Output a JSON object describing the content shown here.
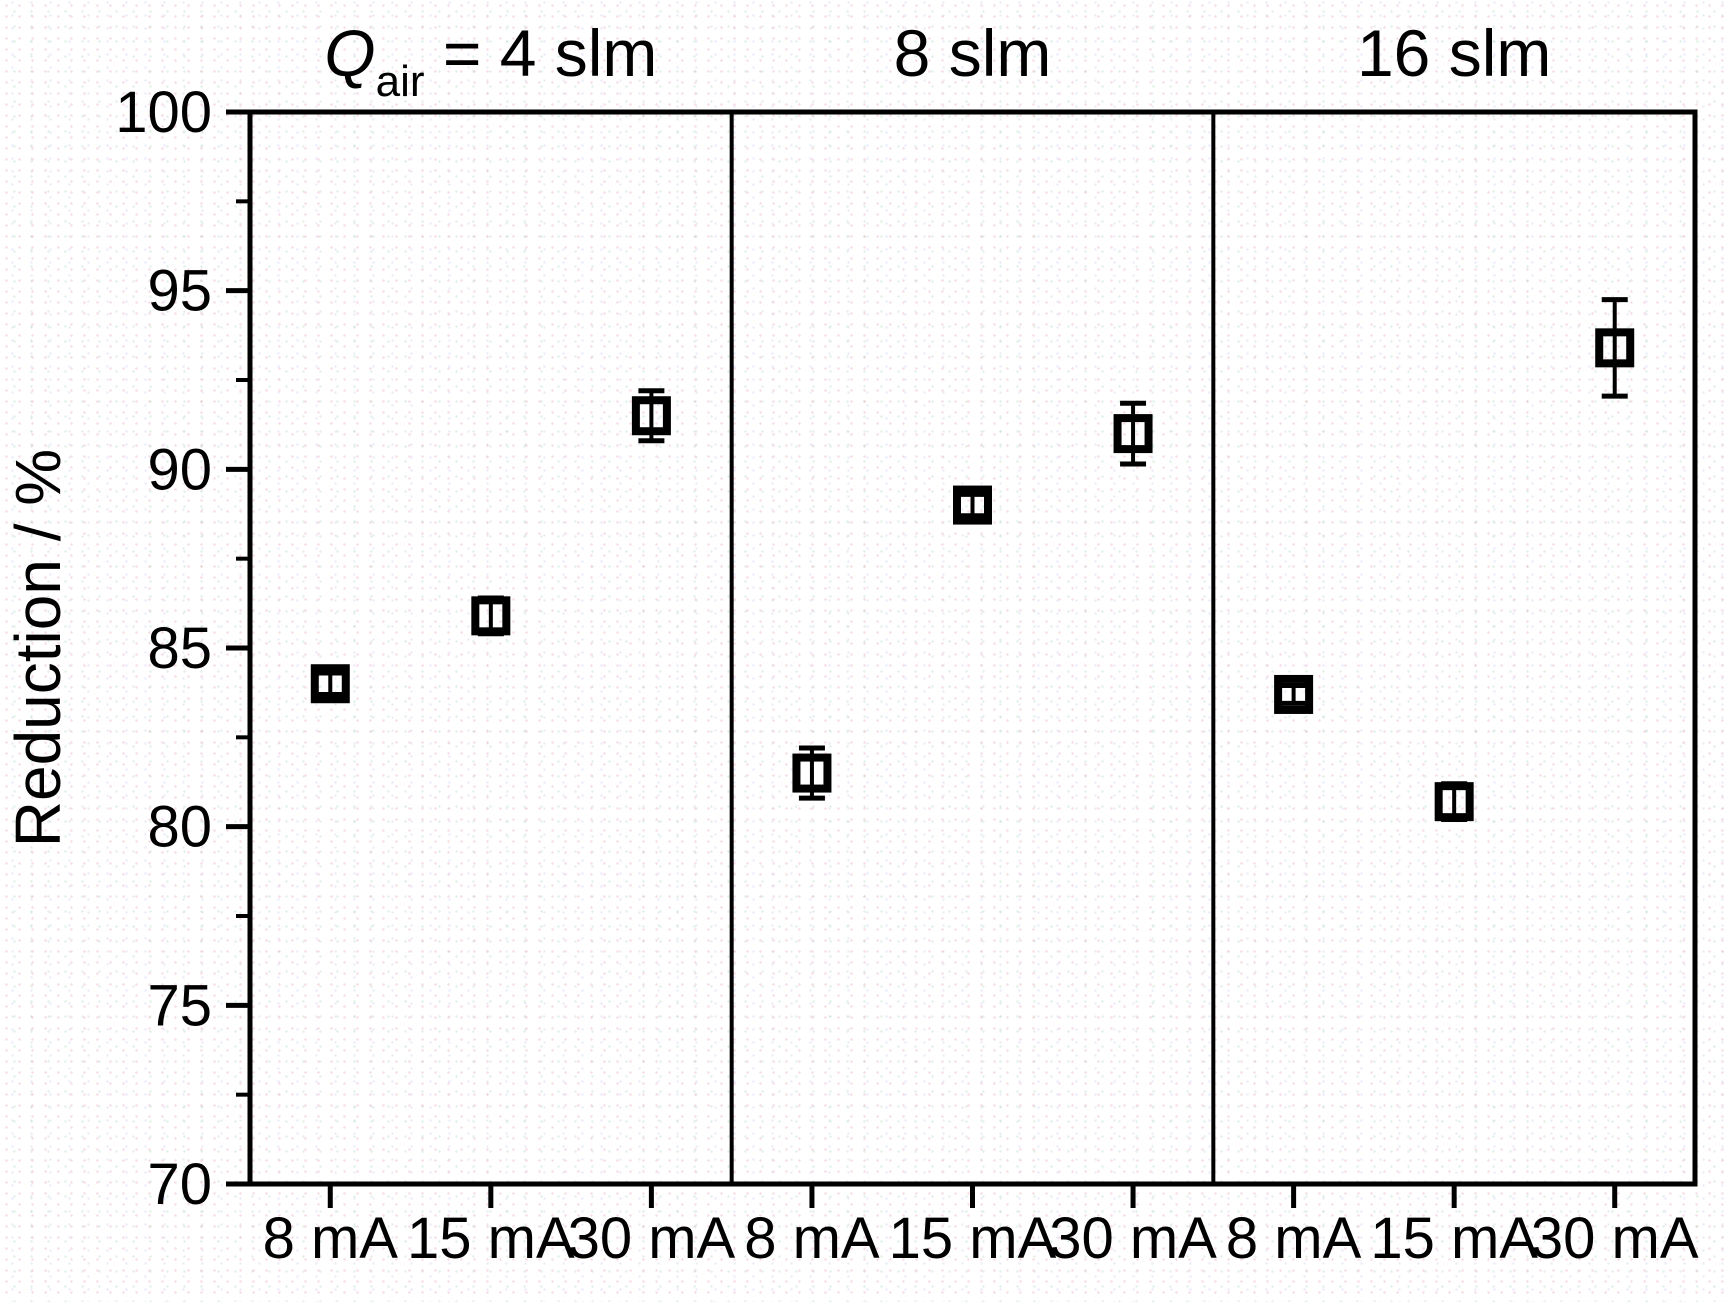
{
  "chart_data": {
    "type": "scatter",
    "marker": "open-square",
    "error_bars": true,
    "ylabel": "Reduction / %",
    "ylim": [
      70,
      100
    ],
    "ytick_major_step": 5,
    "ytick_minor_step": 2.5,
    "ytick_labels": [
      "70",
      "75",
      "80",
      "85",
      "90",
      "95",
      "100"
    ],
    "categories": [
      "8 mA",
      "15 mA",
      "30 mA"
    ],
    "legend": "none",
    "grid": "off",
    "panels": [
      {
        "title_display": "Q_air = 4 slm",
        "title_parts": [
          {
            "text": "Q",
            "style": "italic"
          },
          {
            "text": "air",
            "style": "subscript"
          },
          {
            "text": " = 4 slm",
            "style": "normal"
          }
        ],
        "points": [
          {
            "category": "8 mA",
            "value": 84.0,
            "error": 0.3
          },
          {
            "category": "15 mA",
            "value": 85.9,
            "error": 0.5
          },
          {
            "category": "30 mA",
            "value": 91.5,
            "error": 0.7
          }
        ]
      },
      {
        "title_display": "8 slm",
        "title_parts": [
          {
            "text": "8 slm",
            "style": "normal"
          }
        ],
        "points": [
          {
            "category": "8 mA",
            "value": 81.5,
            "error": 0.7
          },
          {
            "category": "15 mA",
            "value": 89.0,
            "error": 0.3
          },
          {
            "category": "30 mA",
            "value": 91.0,
            "error": 0.85
          }
        ]
      },
      {
        "title_display": "16 slm",
        "title_parts": [
          {
            "text": "16 slm",
            "style": "normal"
          }
        ],
        "points": [
          {
            "category": "8 mA",
            "value": 83.7,
            "error": 0.25
          },
          {
            "category": "15 mA",
            "value": 80.7,
            "error": 0.5
          },
          {
            "category": "30 mA",
            "value": 93.4,
            "error": 1.35
          }
        ]
      }
    ],
    "colors": {
      "foreground": "#000000",
      "background": "#ffffff"
    }
  }
}
